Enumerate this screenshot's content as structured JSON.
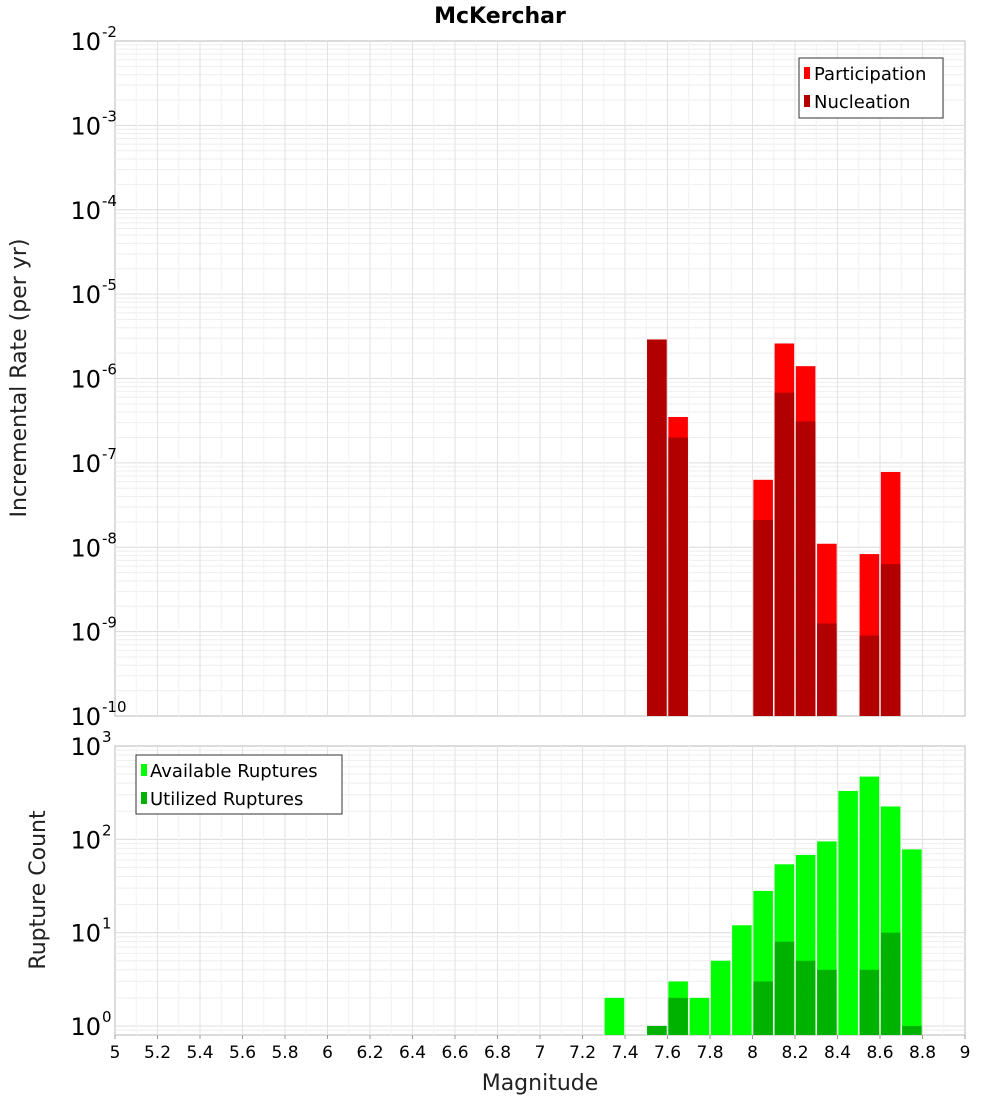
{
  "chart_data": [
    {
      "type": "bar",
      "title": "McKerchar",
      "xlabel": "Magnitude",
      "ylabel": "Incremental Rate (per yr)",
      "yscale": "log",
      "xlim": [
        5,
        9
      ],
      "ylim_exp": [
        -10,
        -2
      ],
      "y_ticks": [
        {
          "base": "10",
          "exp": "-2"
        },
        {
          "base": "10",
          "exp": "-3"
        },
        {
          "base": "10",
          "exp": "-4"
        },
        {
          "base": "10",
          "exp": "-5"
        },
        {
          "base": "10",
          "exp": "-6"
        },
        {
          "base": "10",
          "exp": "-7"
        },
        {
          "base": "10",
          "exp": "-8"
        },
        {
          "base": "10",
          "exp": "-9"
        },
        {
          "base": "10",
          "exp": "-10"
        }
      ],
      "legend": [
        {
          "label": "Participation",
          "color": "#ff0000"
        },
        {
          "label": "Nucleation",
          "color": "#b20000"
        }
      ],
      "series": [
        {
          "name": "Participation",
          "color": "#ff0000",
          "x": [
            7.55,
            7.65,
            8.05,
            8.15,
            8.25,
            8.35,
            8.55,
            8.65
          ],
          "values": [
            2.9e-06,
            3.5e-07,
            6.3e-08,
            2.6e-06,
            1.4e-06,
            1.1e-08,
            8.3e-09,
            7.8e-08
          ]
        },
        {
          "name": "Nucleation",
          "color": "#b20000",
          "x": [
            7.55,
            7.65,
            8.05,
            8.15,
            8.25,
            8.35,
            8.55,
            8.65
          ],
          "values": [
            2.9e-06,
            2e-07,
            2.1e-08,
            6.8e-07,
            3.1e-07,
            1.25e-09,
            9e-10,
            6.3e-09
          ]
        }
      ]
    },
    {
      "type": "bar",
      "xlabel": "Magnitude",
      "ylabel": "Rupture Count",
      "yscale": "log",
      "xlim": [
        5,
        9
      ],
      "ylim": [
        0.8,
        1000
      ],
      "x_ticks": [
        "5",
        "5.2",
        "5.4",
        "5.6",
        "5.8",
        "6",
        "6.2",
        "6.4",
        "6.6",
        "6.8",
        "7",
        "7.2",
        "7.4",
        "7.6",
        "7.8",
        "8",
        "8.2",
        "8.4",
        "8.6",
        "8.8",
        "9"
      ],
      "y_ticks": [
        {
          "base": "10",
          "exp": "3"
        },
        {
          "base": "10",
          "exp": "2"
        },
        {
          "base": "10",
          "exp": "1"
        },
        {
          "base": "10",
          "exp": "0"
        }
      ],
      "legend": [
        {
          "label": "Available Ruptures",
          "color": "#00ff00"
        },
        {
          "label": "Utilized Ruptures",
          "color": "#00b200"
        }
      ],
      "series": [
        {
          "name": "Available Ruptures",
          "color": "#00ff00",
          "x": [
            7.35,
            7.55,
            7.65,
            7.75,
            7.85,
            7.95,
            8.05,
            8.15,
            8.25,
            8.35,
            8.45,
            8.55,
            8.65,
            8.75
          ],
          "values": [
            2,
            1,
            3,
            2,
            5,
            12,
            28,
            54,
            68,
            95,
            330,
            470,
            225,
            78
          ]
        },
        {
          "name": "Utilized Ruptures",
          "color": "#00b200",
          "x": [
            7.55,
            7.65,
            8.05,
            8.15,
            8.25,
            8.35,
            8.55,
            8.65,
            8.75
          ],
          "values": [
            1,
            2,
            3,
            8,
            5,
            4,
            4,
            10,
            1
          ]
        }
      ]
    }
  ]
}
